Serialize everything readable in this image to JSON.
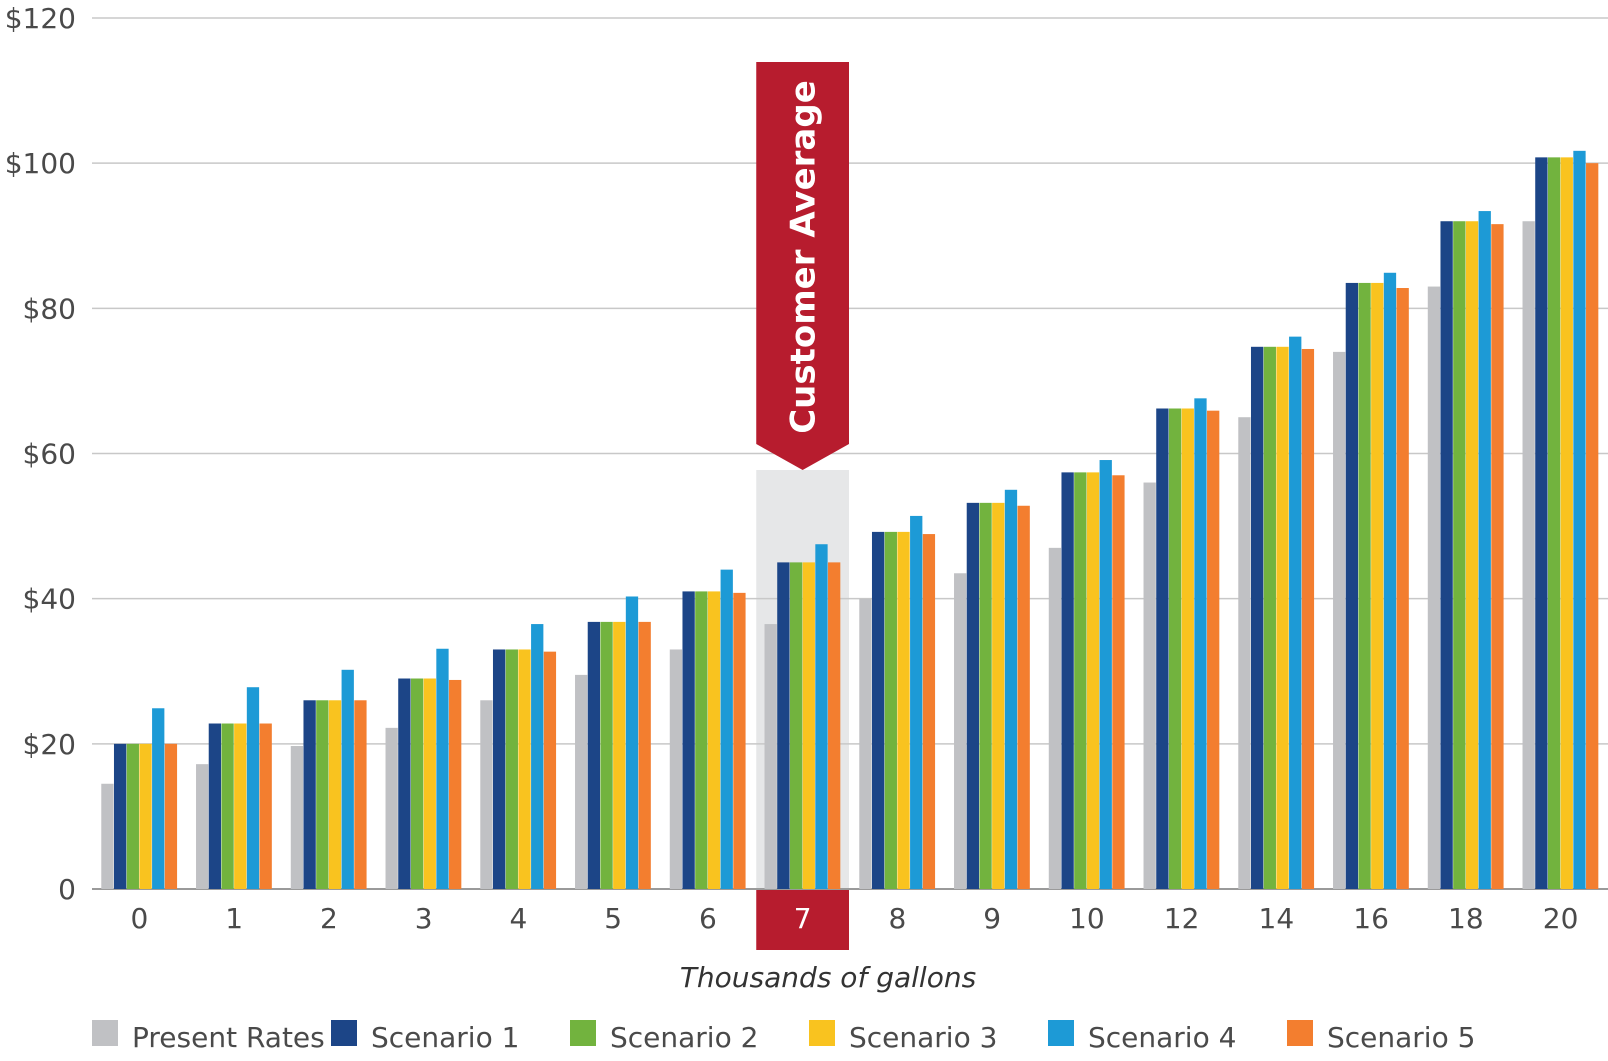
{
  "chart_data": {
    "type": "bar",
    "title": "",
    "xlabel": "Thousands of gallons",
    "ylabel": "",
    "ylim": [
      0,
      120
    ],
    "y_ticks": [
      {
        "value": 0,
        "label": "0"
      },
      {
        "value": 20,
        "label": "$20"
      },
      {
        "value": 40,
        "label": "$40"
      },
      {
        "value": 60,
        "label": "$60"
      },
      {
        "value": 80,
        "label": "$80"
      },
      {
        "value": 100,
        "label": "$100"
      },
      {
        "value": 120,
        "label": "$120"
      }
    ],
    "categories": [
      "0",
      "1",
      "2",
      "3",
      "4",
      "5",
      "6",
      "7",
      "8",
      "9",
      "10",
      "12",
      "14",
      "16",
      "18",
      "20"
    ],
    "highlight": {
      "category": "7",
      "label": "Customer Average",
      "color": "#b71c2e",
      "band_color": "#e6e7e8"
    },
    "grid": true,
    "legend_position": "bottom",
    "series": [
      {
        "name": "Present Rates",
        "color": "#c0c1c4",
        "values": [
          14.5,
          17.2,
          19.7,
          22.2,
          26.0,
          29.5,
          33.0,
          36.5,
          40.0,
          43.5,
          47.0,
          56.0,
          65.0,
          74.0,
          83.0,
          92.0
        ]
      },
      {
        "name": "Scenario 1",
        "color": "#1c4587",
        "values": [
          20.0,
          22.8,
          26.0,
          29.0,
          33.0,
          36.8,
          41.0,
          45.0,
          49.2,
          53.2,
          57.4,
          66.2,
          74.7,
          83.5,
          92.0,
          100.8
        ]
      },
      {
        "name": "Scenario 2",
        "color": "#72b33e",
        "values": [
          20.0,
          22.8,
          26.0,
          29.0,
          33.0,
          36.8,
          41.0,
          45.0,
          49.2,
          53.2,
          57.4,
          66.2,
          74.7,
          83.5,
          92.0,
          100.8
        ]
      },
      {
        "name": "Scenario 3",
        "color": "#f9c31f",
        "values": [
          20.0,
          22.8,
          26.0,
          29.0,
          33.0,
          36.8,
          41.0,
          45.0,
          49.2,
          53.2,
          57.4,
          66.2,
          74.7,
          83.5,
          92.0,
          100.8
        ]
      },
      {
        "name": "Scenario 4",
        "color": "#1d9ad6",
        "values": [
          24.9,
          27.8,
          30.2,
          33.1,
          36.5,
          40.3,
          44.0,
          47.5,
          51.4,
          55.0,
          59.1,
          67.6,
          76.1,
          84.9,
          93.4,
          101.7
        ]
      },
      {
        "name": "Scenario 5",
        "color": "#f37e2f",
        "values": [
          20.0,
          22.8,
          26.0,
          28.8,
          32.7,
          36.8,
          40.8,
          45.0,
          48.9,
          52.8,
          57.0,
          65.9,
          74.4,
          82.8,
          91.6,
          100.0
        ]
      }
    ]
  }
}
